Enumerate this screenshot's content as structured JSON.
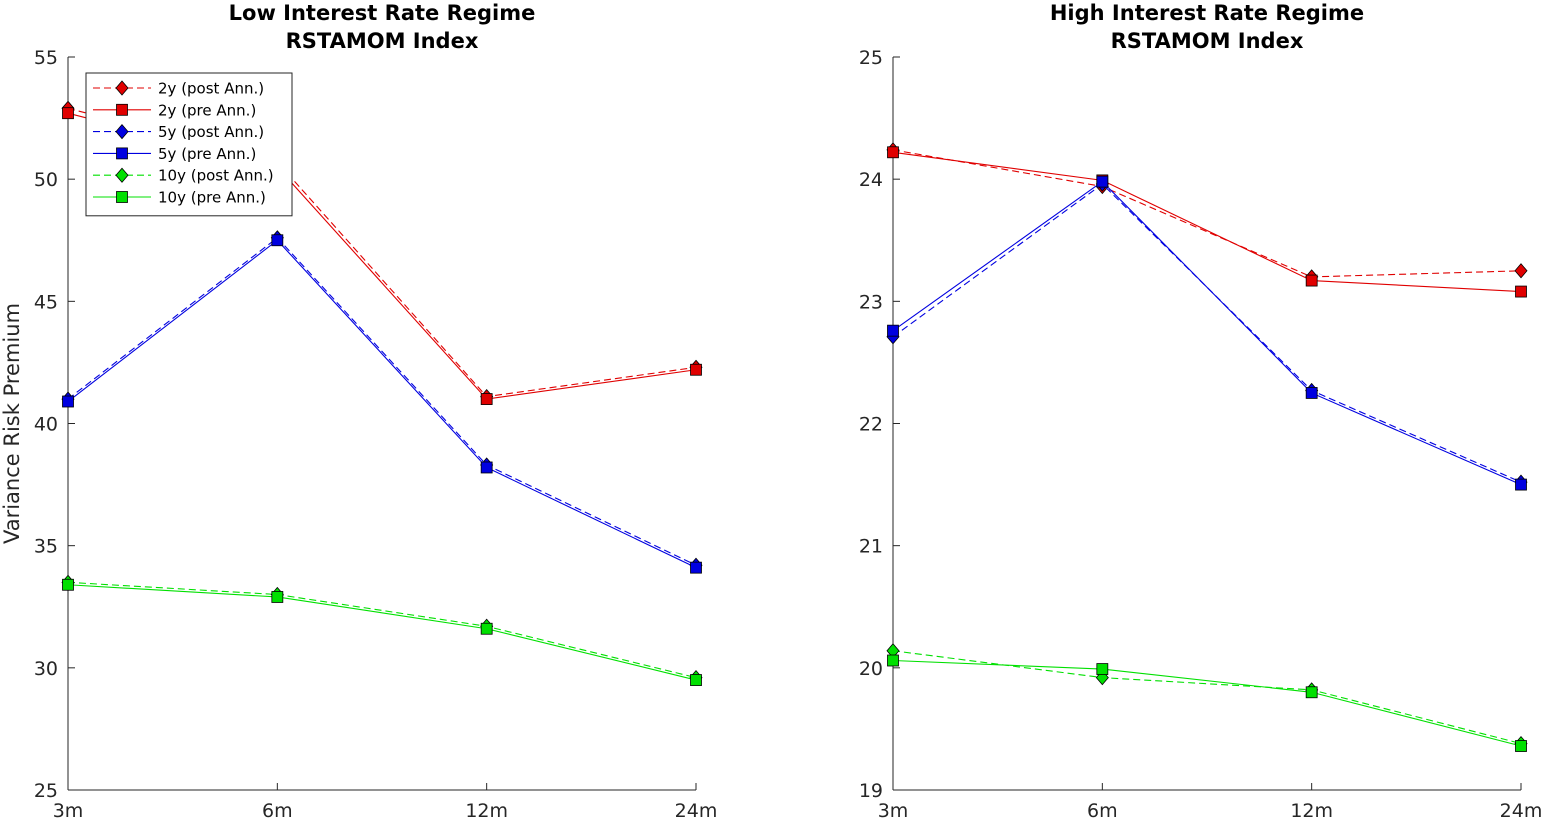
{
  "chart_data": [
    {
      "type": "line",
      "title": [
        "Low Interest Rate Regime",
        "RSTAMOM Index"
      ],
      "xlabel": "",
      "ylabel": "Variance Risk Premium",
      "categories": [
        "3m",
        "6m",
        "12m",
        "24m"
      ],
      "ylim": [
        25,
        55
      ],
      "yticks": [
        25,
        30,
        35,
        40,
        45,
        50,
        55
      ],
      "legend_position": "top-left",
      "series": [
        {
          "name": "2y (post Ann.)",
          "color": "#e00000",
          "line": "dashed",
          "marker": "diamond",
          "values": [
            52.9,
            50.7,
            41.1,
            42.3
          ]
        },
        {
          "name": "2y (pre Ann.)",
          "color": "#e00000",
          "line": "solid",
          "marker": "square",
          "values": [
            52.7,
            50.5,
            41.0,
            42.2
          ]
        },
        {
          "name": "5y (post Ann.)",
          "color": "#0000e0",
          "line": "dashed",
          "marker": "diamond",
          "values": [
            41.0,
            47.6,
            38.3,
            34.2
          ]
        },
        {
          "name": "5y (pre Ann.)",
          "color": "#0000e0",
          "line": "solid",
          "marker": "square",
          "values": [
            40.9,
            47.5,
            38.2,
            34.1
          ]
        },
        {
          "name": "10y (post Ann.)",
          "color": "#00e000",
          "line": "dashed",
          "marker": "diamond",
          "values": [
            33.5,
            33.0,
            31.7,
            29.6
          ]
        },
        {
          "name": "10y (pre Ann.)",
          "color": "#00e000",
          "line": "solid",
          "marker": "square",
          "values": [
            33.4,
            32.9,
            31.6,
            29.5
          ]
        }
      ]
    },
    {
      "type": "line",
      "title": [
        "High Interest Rate Regime",
        "RSTAMOM Index"
      ],
      "xlabel": "",
      "ylabel": "",
      "categories": [
        "3m",
        "6m",
        "12m",
        "24m"
      ],
      "ylim": [
        19,
        25
      ],
      "yticks": [
        19,
        20,
        21,
        22,
        23,
        24,
        25
      ],
      "series": [
        {
          "name": "2y (post Ann.)",
          "color": "#e00000",
          "line": "dashed",
          "marker": "diamond",
          "values": [
            24.24,
            23.94,
            23.2,
            23.25
          ]
        },
        {
          "name": "2y (pre Ann.)",
          "color": "#e00000",
          "line": "solid",
          "marker": "square",
          "values": [
            24.22,
            23.99,
            23.17,
            23.08
          ]
        },
        {
          "name": "5y (post Ann.)",
          "color": "#0000e0",
          "line": "dashed",
          "marker": "diamond",
          "values": [
            22.71,
            23.96,
            22.27,
            21.52
          ]
        },
        {
          "name": "5y (pre Ann.)",
          "color": "#0000e0",
          "line": "solid",
          "marker": "square",
          "values": [
            22.76,
            23.98,
            22.25,
            21.5
          ]
        },
        {
          "name": "10y (post Ann.)",
          "color": "#00e000",
          "line": "dashed",
          "marker": "diamond",
          "values": [
            20.14,
            19.92,
            19.82,
            19.38
          ]
        },
        {
          "name": "10y (pre Ann.)",
          "color": "#00e000",
          "line": "solid",
          "marker": "square",
          "values": [
            20.06,
            19.99,
            19.8,
            19.36
          ]
        }
      ]
    }
  ]
}
